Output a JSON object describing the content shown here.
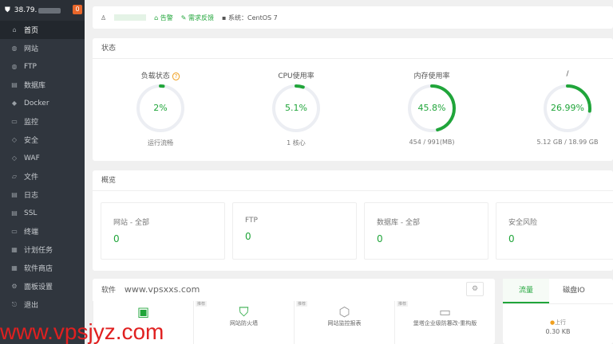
{
  "sidebar": {
    "server_ip": "38.79.",
    "notification_count": "0",
    "items": [
      {
        "label": "首页",
        "icon": "home-icon"
      },
      {
        "label": "网站",
        "icon": "globe-icon"
      },
      {
        "label": "FTP",
        "icon": "ftp-icon"
      },
      {
        "label": "数据库",
        "icon": "database-icon"
      },
      {
        "label": "Docker",
        "icon": "docker-icon"
      },
      {
        "label": "监控",
        "icon": "monitor-icon"
      },
      {
        "label": "安全",
        "icon": "shield-icon"
      },
      {
        "label": "WAF",
        "icon": "waf-icon"
      },
      {
        "label": "文件",
        "icon": "folder-icon"
      },
      {
        "label": "日志",
        "icon": "log-icon"
      },
      {
        "label": "SSL",
        "icon": "ssl-icon"
      },
      {
        "label": "终端",
        "icon": "terminal-icon"
      },
      {
        "label": "计划任务",
        "icon": "calendar-icon"
      },
      {
        "label": "软件商店",
        "icon": "grid-icon"
      },
      {
        "label": "面板设置",
        "icon": "gear-icon"
      },
      {
        "label": "退出",
        "icon": "logout-icon"
      }
    ]
  },
  "header": {
    "alert": "告警",
    "feedback": "需求反馈",
    "system": "系统：CentOS 7"
  },
  "status": {
    "title": "状态",
    "gauges": [
      {
        "label": "负载状态",
        "value": "2%",
        "percent": 2,
        "sub": "运行流畅"
      },
      {
        "label": "CPU使用率",
        "value": "5.1%",
        "percent": 5.1,
        "sub": "1 核心"
      },
      {
        "label": "内存使用率",
        "value": "45.8%",
        "percent": 45.8,
        "sub": "454 / 991(MB)"
      },
      {
        "label": "/",
        "value": "26.99%",
        "percent": 26.99,
        "sub": "5.12 GB / 18.99 GB"
      }
    ]
  },
  "overview": {
    "title": "概览",
    "items": [
      {
        "label": "网站 - 全部",
        "value": "0"
      },
      {
        "label": "FTP",
        "value": "0"
      },
      {
        "label": "数据库 - 全部",
        "value": "0"
      },
      {
        "label": "安全风险",
        "value": "0"
      }
    ]
  },
  "software": {
    "title": "软件",
    "site": "www.vpsxxs.com",
    "tag": "推荐",
    "items": [
      {
        "label": ""
      },
      {
        "label": "网站防火墙"
      },
      {
        "label": "网站监控报表"
      },
      {
        "label": "堡塔企业级防篡改-重构版"
      }
    ]
  },
  "traffic": {
    "tabs": [
      "流量",
      "磁盘IO"
    ],
    "up_label": "上行",
    "up_value": "0.30 KB"
  },
  "watermark": "www.vpsjyz.com",
  "colors": {
    "accent": "#20a53a",
    "sidebar": "#30363e",
    "badge": "#e8662a"
  }
}
